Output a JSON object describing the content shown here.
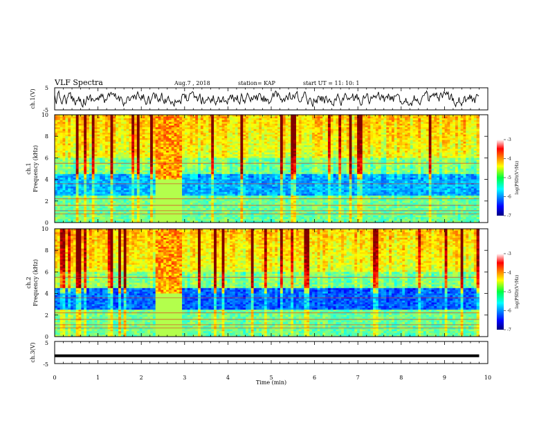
{
  "header": {
    "title": "VLF Spectra",
    "date": "Aug.7  , 2018",
    "station": "station= KAP",
    "start": "start  UT  =   11: 10: 1"
  },
  "chart_data": [
    {
      "type": "line",
      "panel": "ch1-waveform",
      "ylabel": "ch.1(V)",
      "yticks": [
        "5",
        "-5"
      ],
      "ylim": [
        -5,
        5
      ],
      "x_range": [
        0,
        10
      ]
    },
    {
      "type": "heatmap",
      "panel": "ch1-spectrogram",
      "ylabel": "Frequency (kHz)",
      "ylabel_channel": "ch.1",
      "ylim": [
        0,
        10
      ],
      "yticks": [
        "0",
        "2",
        "4",
        "6",
        "8",
        "10"
      ],
      "x_range": [
        0,
        10
      ],
      "colorbar": {
        "label": "log(PSD)(V²/Hz)",
        "range": [
          -7,
          -3
        ],
        "ticks": [
          "-3",
          "-4",
          "-5",
          "-6",
          "-7"
        ]
      }
    },
    {
      "type": "heatmap",
      "panel": "ch2-spectrogram",
      "ylabel": "Frequency (kHz)",
      "ylabel_channel": "ch.2",
      "ylim": [
        0,
        10
      ],
      "yticks": [
        "0",
        "2",
        "4",
        "6",
        "8",
        "10"
      ],
      "x_range": [
        0,
        10
      ],
      "colorbar": {
        "label": "log(PSD)(V²/Hz)",
        "range": [
          -7,
          -3
        ],
        "ticks": [
          "-3",
          "-4",
          "-5",
          "-6",
          "-7"
        ]
      }
    },
    {
      "type": "line",
      "panel": "ch3-waveform",
      "ylabel": "ch.3(V)",
      "yticks": [
        "5",
        "-5"
      ],
      "ylim": [
        -5,
        5
      ],
      "x_range": [
        0,
        10
      ],
      "xlabel": "Time (min)",
      "xticks": [
        "0",
        "1",
        "2",
        "3",
        "4",
        "5",
        "6",
        "7",
        "8",
        "9",
        "10"
      ],
      "data_end_min": 9.8,
      "constant_value": -1.5
    }
  ]
}
